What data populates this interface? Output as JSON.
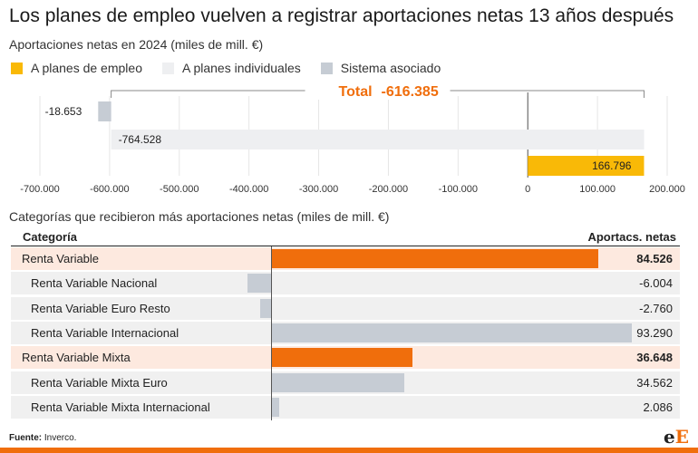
{
  "title": "Los planes de empleo vuelven a registrar aportaciones netas 13 años después",
  "subtitle": "Aportaciones netas en 2024 (miles de mill. €)",
  "colors": {
    "orange": "#f06e0c",
    "yellow": "#f9b907",
    "light_gray": "#eeeff1",
    "gray": "#c6ccd4",
    "row_highlight": "#fde9df",
    "row_alt": "#f0f0f0"
  },
  "legend": [
    {
      "label": "A planes de empleo",
      "color": "#f9b907"
    },
    {
      "label": "A planes individuales",
      "color": "#eeeff1"
    },
    {
      "label": "Sistema asociado",
      "color": "#c6ccd4"
    }
  ],
  "chart_data": [
    {
      "type": "bar",
      "orientation": "horizontal",
      "series": [
        {
          "name": "Sistema asociado",
          "value": -18.653,
          "label": "-18.653",
          "color": "#c6ccd4"
        },
        {
          "name": "A planes individuales",
          "value": -764.528,
          "label": "-764.528",
          "color": "#eeeff1"
        },
        {
          "name": "A planes de empleo",
          "value": 166.796,
          "label": "166.796",
          "color": "#f9b907"
        }
      ],
      "total": {
        "label": "Total",
        "value": "-616.385"
      },
      "xlim": [
        -700,
        200
      ],
      "xticks": [
        -700,
        -600,
        -500,
        -400,
        -300,
        -200,
        -100,
        0,
        100,
        200
      ],
      "xtick_labels": [
        "-700.000",
        "-600.000",
        "-500.000",
        "-400.000",
        "-300.000",
        "-200.000",
        "-100.000",
        "0",
        "100.000",
        "200.000"
      ],
      "grid": true
    },
    {
      "type": "bar",
      "orientation": "horizontal",
      "title": "Categorías que recibieron más aportaciones netas (miles de mill. €)",
      "column_headers": [
        "Categoría",
        "Aportacs. netas"
      ],
      "rows": [
        {
          "category": "Renta Variable",
          "value": 84.526,
          "display": "84.526",
          "main": true
        },
        {
          "category": "Renta Variable Nacional",
          "value": -6.004,
          "display": "-6.004",
          "main": false
        },
        {
          "category": "Renta Variable Euro Resto",
          "value": -2.76,
          "display": "-2.760",
          "main": false
        },
        {
          "category": "Renta Variable Internacional",
          "value": 93.29,
          "display": "93.290",
          "main": false
        },
        {
          "category": "Renta Variable Mixta",
          "value": 36.648,
          "display": "36.648",
          "main": true
        },
        {
          "category": "Renta Variable Mixta Euro",
          "value": 34.562,
          "display": "34.562",
          "main": false
        },
        {
          "category": "Renta Variable Mixta Internacional",
          "value": 2.086,
          "display": "2.086",
          "main": false
        }
      ]
    }
  ],
  "footer": {
    "source_label": "Fuente:",
    "source_value": "Inverco.",
    "logo_a": "e",
    "logo_b": "E"
  }
}
